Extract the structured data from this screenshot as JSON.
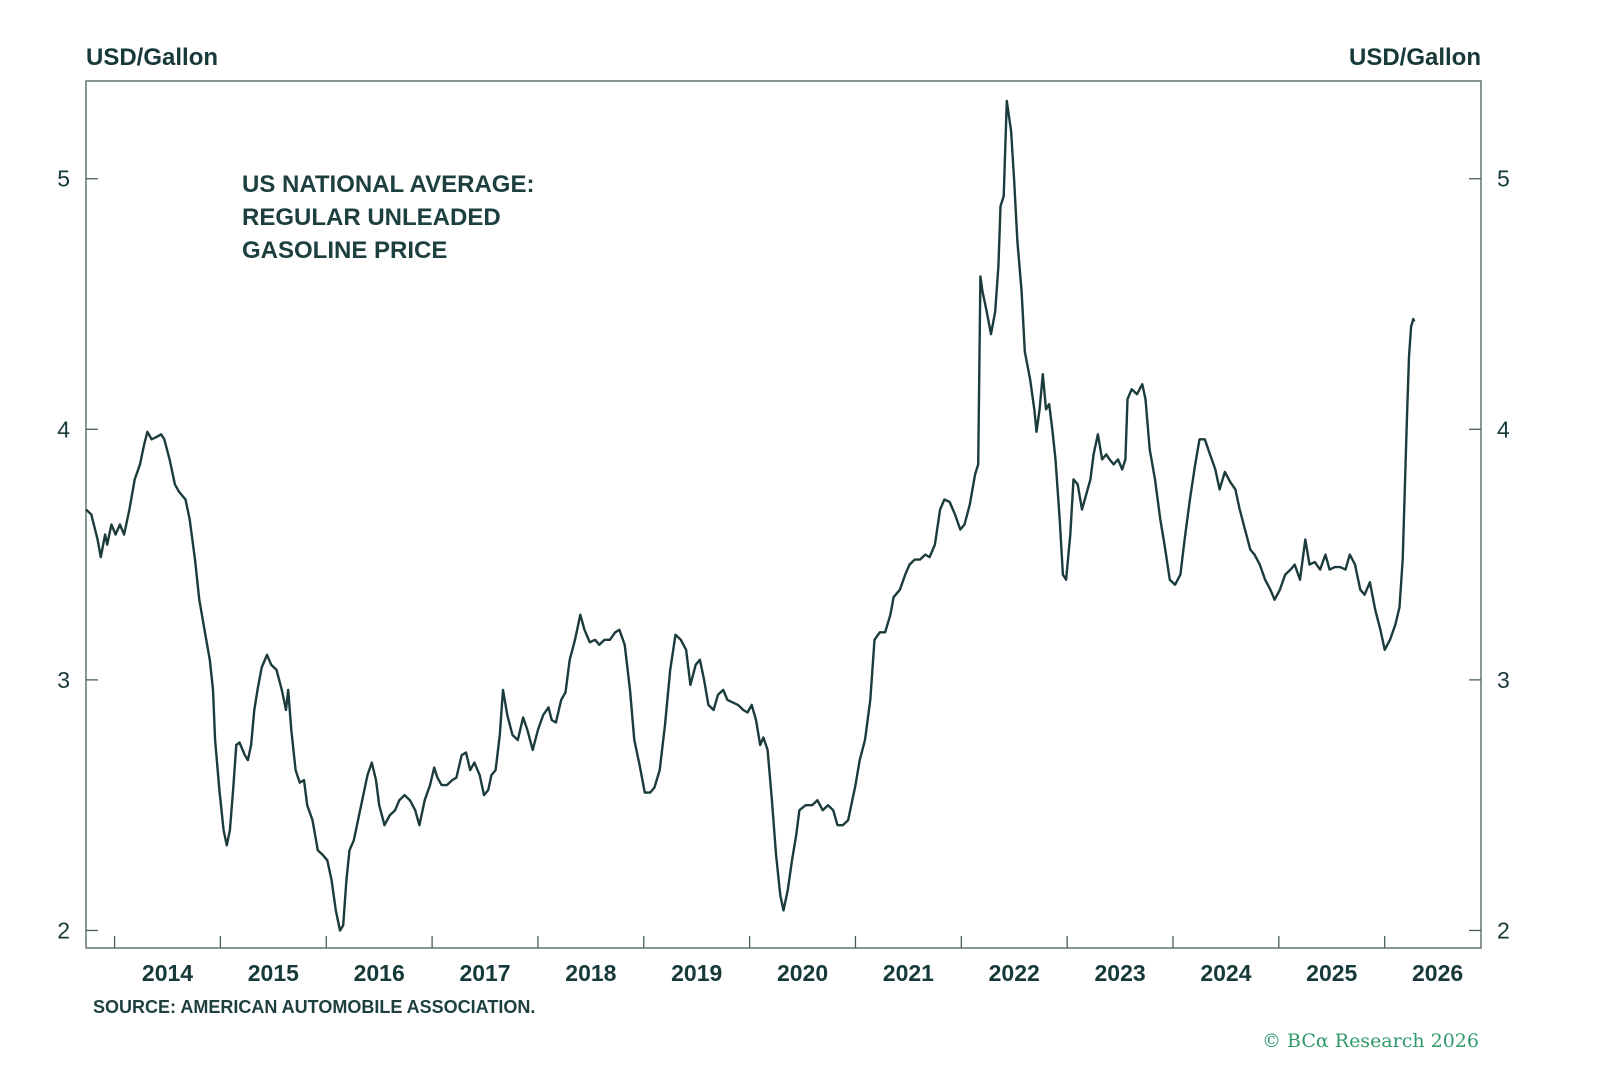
{
  "chart_data": {
    "type": "line",
    "title_lines": [
      "US NATIONAL AVERAGE:",
      "REGULAR UNLEADED",
      "GASOLINE PRICE"
    ],
    "ylabel_left": "USD/Gallon",
    "ylabel_right": "USD/Gallon",
    "xlabel": "",
    "source": "SOURCE: AMERICAN AUTOMOBILE ASSOCIATION.",
    "copyright": "© BCα Research 2026",
    "xlim": [
      2013.73,
      2026.91
    ],
    "ylim": [
      1.93,
      5.39
    ],
    "y_ticks": [
      2,
      3,
      4,
      5
    ],
    "x_ticks": [
      2014,
      2015,
      2016,
      2017,
      2018,
      2019,
      2020,
      2021,
      2022,
      2023,
      2024,
      2025,
      2026
    ],
    "x_tick_labels": [
      "2014",
      "2015",
      "2016",
      "2017",
      "2018",
      "2019",
      "2020",
      "2021",
      "2022",
      "2023",
      "2024",
      "2025",
      "2026"
    ],
    "grid": false,
    "line_color": "#1b3b3c",
    "series": [
      {
        "name": "US national average regular unleaded gasoline price",
        "x": [
          2013.73,
          2013.78,
          2013.84,
          2013.87,
          2013.91,
          2013.93,
          2013.97,
          2014.01,
          2014.05,
          2014.09,
          2014.14,
          2014.19,
          2014.24,
          2014.28,
          2014.31,
          2014.35,
          2014.4,
          2014.44,
          2014.47,
          2014.52,
          2014.57,
          2014.61,
          2014.67,
          2014.71,
          2014.76,
          2014.8,
          2014.85,
          2014.9,
          2014.93,
          2014.95,
          2014.99,
          2015.03,
          2015.06,
          2015.09,
          2015.12,
          2015.15,
          2015.18,
          2015.23,
          2015.26,
          2015.29,
          2015.32,
          2015.35,
          2015.39,
          2015.44,
          2015.48,
          2015.53,
          2015.58,
          2015.62,
          2015.64,
          2015.67,
          2015.71,
          2015.75,
          2015.79,
          2015.82,
          2015.87,
          2015.92,
          2015.97,
          2016.01,
          2016.05,
          2016.09,
          2016.13,
          2016.16,
          2016.19,
          2016.22,
          2016.26,
          2016.3,
          2016.34,
          2016.39,
          2016.43,
          2016.47,
          2016.5,
          2016.55,
          2016.6,
          2016.65,
          2016.69,
          2016.74,
          2016.79,
          2016.84,
          2016.88,
          2016.93,
          2016.98,
          2017.02,
          2017.05,
          2017.09,
          2017.14,
          2017.19,
          2017.23,
          2017.28,
          2017.32,
          2017.36,
          2017.4,
          2017.45,
          2017.49,
          2017.53,
          2017.56,
          2017.6,
          2017.64,
          2017.67,
          2017.71,
          2017.76,
          2017.81,
          2017.86,
          2017.9,
          2017.95,
          2018.0,
          2018.05,
          2018.1,
          2018.13,
          2018.17,
          2018.22,
          2018.26,
          2018.3,
          2018.35,
          2018.4,
          2018.44,
          2018.49,
          2018.54,
          2018.58,
          2018.63,
          2018.68,
          2018.73,
          2018.77,
          2018.82,
          2018.87,
          2018.91,
          2018.96,
          2019.01,
          2019.06,
          2019.1,
          2019.15,
          2019.2,
          2019.25,
          2019.3,
          2019.35,
          2019.4,
          2019.44,
          2019.49,
          2019.53,
          2019.57,
          2019.61,
          2019.66,
          2019.7,
          2019.75,
          2019.79,
          2019.84,
          2019.89,
          2019.94,
          2019.98,
          2020.02,
          2020.06,
          2020.1,
          2020.13,
          2020.17,
          2020.21,
          2020.25,
          2020.29,
          2020.32,
          2020.36,
          2020.4,
          2020.44,
          2020.47,
          2020.53,
          2020.59,
          2020.64,
          2020.69,
          2020.74,
          2020.79,
          2020.83,
          2020.88,
          2020.93,
          2020.97,
          2021.0,
          2021.04,
          2021.09,
          2021.14,
          2021.18,
          2021.23,
          2021.28,
          2021.33,
          2021.36,
          2021.42,
          2021.47,
          2021.51,
          2021.56,
          2021.61,
          2021.66,
          2021.7,
          2021.75,
          2021.8,
          2021.84,
          2021.89,
          2021.94,
          2021.99,
          2022.03,
          2022.08,
          2022.13,
          2022.16,
          2022.18,
          2022.2,
          2022.24,
          2022.28,
          2022.32,
          2022.35,
          2022.37,
          2022.4,
          2022.43,
          2022.47,
          2022.5,
          2022.53,
          2022.57,
          2022.6,
          2022.65,
          2022.69,
          2022.71,
          2022.74,
          2022.77,
          2022.8,
          2022.83,
          2022.86,
          2022.89,
          2022.93,
          2022.96,
          2022.99,
          2023.03,
          2023.06,
          2023.1,
          2023.14,
          2023.18,
          2023.22,
          2023.25,
          2023.29,
          2023.33,
          2023.37,
          2023.4,
          2023.44,
          2023.48,
          2023.52,
          2023.55,
          2023.57,
          2023.61,
          2023.66,
          2023.71,
          2023.74,
          2023.78,
          2023.83,
          2023.88,
          2023.92,
          2023.97,
          2024.02,
          2024.07,
          2024.11,
          2024.16,
          2024.21,
          2024.25,
          2024.3,
          2024.35,
          2024.4,
          2024.44,
          2024.49,
          2024.54,
          2024.59,
          2024.63,
          2024.68,
          2024.73,
          2024.77,
          2024.82,
          2024.87,
          2024.92,
          2024.96,
          2025.01,
          2025.06,
          2025.11,
          2025.15,
          2025.2,
          2025.25,
          2025.29,
          2025.34,
          2025.39,
          2025.44,
          2025.48,
          2025.53,
          2025.58,
          2025.63,
          2025.67,
          2025.72,
          2025.77,
          2025.81,
          2025.86,
          2025.91,
          2025.96,
          2026.0,
          2026.05,
          2026.1,
          2026.14,
          2026.17,
          2026.21,
          2026.23,
          2026.25,
          2026.27,
          2026.28
        ],
        "y": [
          3.68,
          3.66,
          3.56,
          3.49,
          3.58,
          3.54,
          3.62,
          3.58,
          3.62,
          3.58,
          3.68,
          3.8,
          3.86,
          3.94,
          3.99,
          3.96,
          3.97,
          3.98,
          3.96,
          3.88,
          3.78,
          3.75,
          3.72,
          3.64,
          3.48,
          3.32,
          3.2,
          3.08,
          2.96,
          2.76,
          2.56,
          2.4,
          2.34,
          2.4,
          2.56,
          2.74,
          2.75,
          2.7,
          2.68,
          2.74,
          2.88,
          2.96,
          3.05,
          3.1,
          3.06,
          3.04,
          2.96,
          2.88,
          2.96,
          2.8,
          2.64,
          2.59,
          2.6,
          2.5,
          2.44,
          2.32,
          2.3,
          2.28,
          2.2,
          2.08,
          2.0,
          2.02,
          2.2,
          2.32,
          2.36,
          2.44,
          2.52,
          2.62,
          2.67,
          2.6,
          2.5,
          2.42,
          2.46,
          2.48,
          2.52,
          2.54,
          2.52,
          2.48,
          2.42,
          2.52,
          2.58,
          2.65,
          2.61,
          2.58,
          2.58,
          2.6,
          2.61,
          2.7,
          2.71,
          2.64,
          2.67,
          2.62,
          2.54,
          2.56,
          2.62,
          2.64,
          2.78,
          2.96,
          2.86,
          2.78,
          2.76,
          2.85,
          2.8,
          2.72,
          2.8,
          2.86,
          2.89,
          2.84,
          2.83,
          2.92,
          2.95,
          3.08,
          3.16,
          3.26,
          3.2,
          3.15,
          3.16,
          3.14,
          3.16,
          3.16,
          3.19,
          3.2,
          3.14,
          2.96,
          2.76,
          2.66,
          2.55,
          2.55,
          2.57,
          2.64,
          2.82,
          3.04,
          3.18,
          3.16,
          3.12,
          2.98,
          3.06,
          3.08,
          3.0,
          2.9,
          2.88,
          2.94,
          2.96,
          2.92,
          2.91,
          2.9,
          2.88,
          2.87,
          2.9,
          2.84,
          2.74,
          2.77,
          2.72,
          2.52,
          2.3,
          2.14,
          2.08,
          2.16,
          2.28,
          2.38,
          2.48,
          2.5,
          2.5,
          2.52,
          2.48,
          2.5,
          2.48,
          2.42,
          2.42,
          2.44,
          2.52,
          2.58,
          2.68,
          2.76,
          2.92,
          3.16,
          3.19,
          3.19,
          3.26,
          3.33,
          3.36,
          3.42,
          3.46,
          3.48,
          3.48,
          3.5,
          3.49,
          3.54,
          3.68,
          3.72,
          3.71,
          3.66,
          3.6,
          3.62,
          3.7,
          3.82,
          3.86,
          4.61,
          4.55,
          4.47,
          4.38,
          4.47,
          4.65,
          4.89,
          4.93,
          5.31,
          5.19,
          4.99,
          4.75,
          4.55,
          4.31,
          4.2,
          4.08,
          3.99,
          4.08,
          4.22,
          4.08,
          4.1,
          4.0,
          3.88,
          3.64,
          3.42,
          3.4,
          3.58,
          3.8,
          3.78,
          3.68,
          3.74,
          3.8,
          3.9,
          3.98,
          3.88,
          3.9,
          3.88,
          3.86,
          3.88,
          3.84,
          3.88,
          4.12,
          4.16,
          4.14,
          4.18,
          4.12,
          3.92,
          3.8,
          3.64,
          3.54,
          3.4,
          3.38,
          3.42,
          3.56,
          3.72,
          3.86,
          3.96,
          3.96,
          3.9,
          3.84,
          3.76,
          3.83,
          3.79,
          3.76,
          3.68,
          3.6,
          3.52,
          3.5,
          3.46,
          3.4,
          3.36,
          3.32,
          3.36,
          3.42,
          3.44,
          3.46,
          3.4,
          3.56,
          3.46,
          3.47,
          3.44,
          3.5,
          3.44,
          3.45,
          3.45,
          3.44,
          3.5,
          3.46,
          3.36,
          3.34,
          3.39,
          3.28,
          3.2,
          3.12,
          3.16,
          3.22,
          3.29,
          3.48,
          4.04,
          4.29,
          4.41,
          4.44,
          4.43
        ]
      }
    ]
  }
}
